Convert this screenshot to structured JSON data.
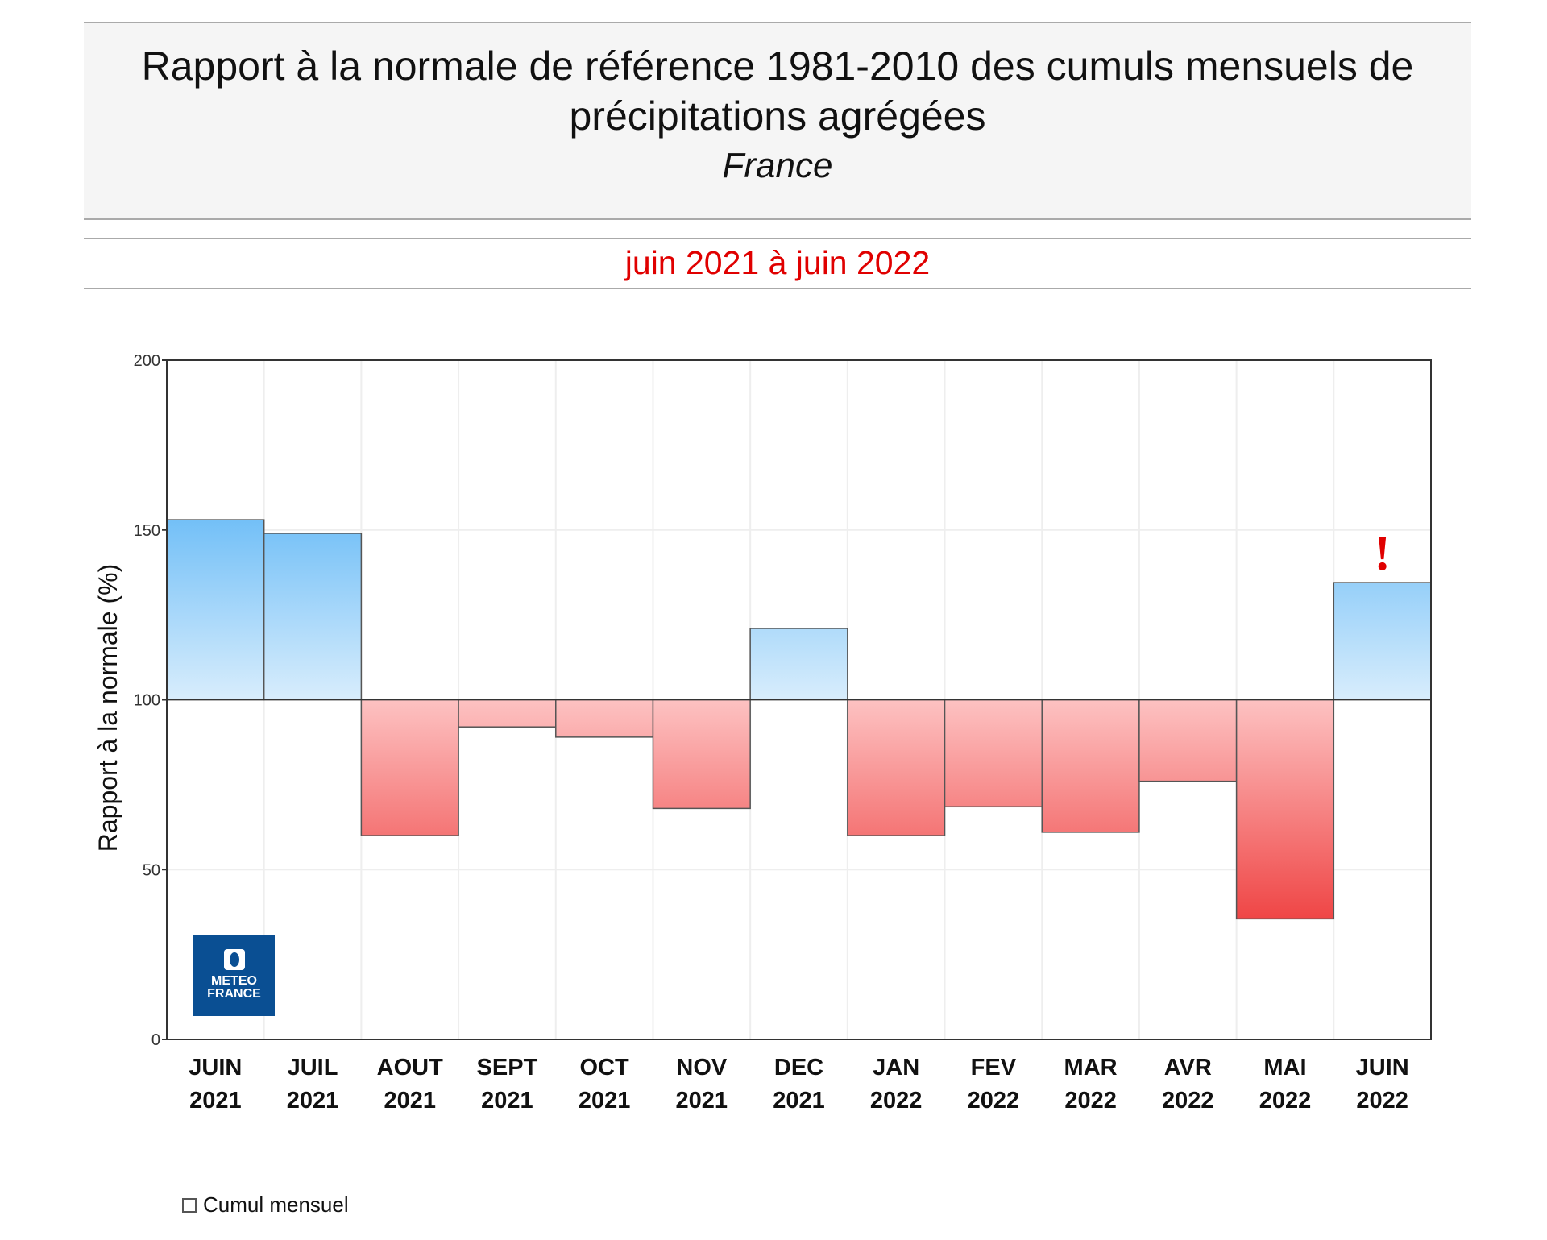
{
  "header": {
    "title": "Rapport à la normale de référence 1981-2010 des cumuls mensuels de précipitations agrégées",
    "region": "France"
  },
  "period": "juin 2021 à juin 2022",
  "legend": {
    "label": "Cumul mensuel"
  },
  "logo": {
    "text": "METEO FRANCE"
  },
  "alert_mark": "!",
  "colors": {
    "above_top": "#6fbef7",
    "above_bottom": "#d8edfc",
    "below_top": "#fdc2c2",
    "below_bottom": "#ee3b3b",
    "alert": "#e00000"
  },
  "chart_data": {
    "type": "bar",
    "title": "Rapport à la normale de référence 1981-2010 des cumuls mensuels de précipitations agrégées",
    "ylabel": "Rapport à la normale (%)",
    "xlabel": "",
    "ylim": [
      0,
      200
    ],
    "yticks": [
      0,
      50,
      100,
      150,
      200
    ],
    "baseline": 100,
    "grid": true,
    "legend": "bottom-left",
    "categories": [
      [
        "JUIN",
        "2021"
      ],
      [
        "JUIL",
        "2021"
      ],
      [
        "AOUT",
        "2021"
      ],
      [
        "SEPT",
        "2021"
      ],
      [
        "OCT",
        "2021"
      ],
      [
        "NOV",
        "2021"
      ],
      [
        "DEC",
        "2021"
      ],
      [
        "JAN",
        "2022"
      ],
      [
        "FEV",
        "2022"
      ],
      [
        "MAR",
        "2022"
      ],
      [
        "AVR",
        "2022"
      ],
      [
        "MAI",
        "2022"
      ],
      [
        "JUIN",
        "2022"
      ]
    ],
    "series": [
      {
        "name": "Cumul mensuel",
        "values": [
          153,
          149,
          60,
          92,
          89,
          68,
          121,
          60,
          68.5,
          61,
          76,
          35.5,
          134.5
        ]
      }
    ],
    "flagged_category_index": 12
  }
}
